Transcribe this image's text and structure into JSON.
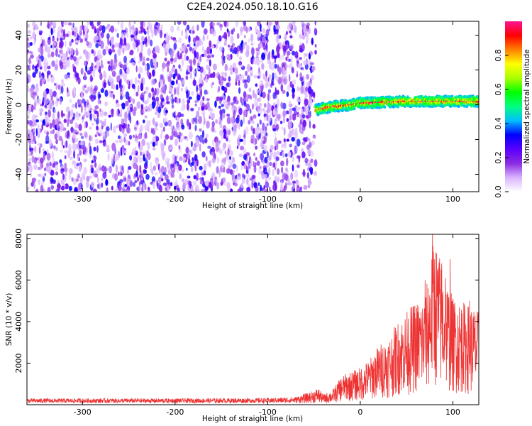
{
  "figure_title": "C2E4.2024.050.18.10.G16",
  "chart_data": [
    {
      "type": "heatmap",
      "title": "",
      "xlabel": "Height of straight line (km)",
      "ylabel": "Frequency (Hz)",
      "xlim": [
        -360,
        128
      ],
      "ylim": [
        -50,
        48
      ],
      "xticks": [
        -300,
        -200,
        -100,
        0,
        100
      ],
      "yticks": [
        -40,
        -20,
        0,
        20,
        40
      ],
      "grid": false,
      "colorbar": {
        "label": "Normalized spectral amplitude",
        "range": [
          0,
          1
        ],
        "ticks": [
          0.0,
          0.2,
          0.4,
          0.6,
          0.8
        ],
        "colormap": [
          "#ffffff",
          "#d9b3ff",
          "#8a2be2",
          "#5a00ff",
          "#0000ff",
          "#00bfff",
          "#00ff7f",
          "#00ff00",
          "#aaff00",
          "#ffff00",
          "#ff8000",
          "#ff0000",
          "#ff1493"
        ]
      },
      "regions": [
        {
          "name": "noise",
          "x_range": [
            -360,
            -48
          ],
          "y_range": [
            -50,
            48
          ],
          "amplitude_range": [
            0.0,
            0.2
          ]
        },
        {
          "name": "signal_band",
          "x_range": [
            -48,
            128
          ],
          "center_frequency": [
            [
              -48,
              -3
            ],
            [
              -30,
              -1
            ],
            [
              -10,
              0
            ],
            [
              0,
              1
            ],
            [
              50,
              2
            ],
            [
              128,
              2
            ]
          ],
          "half_width_hz": 3,
          "amplitude_range": [
            0.4,
            1.0
          ]
        }
      ]
    },
    {
      "type": "line",
      "title": "",
      "xlabel": "Height of straight line (km)",
      "ylabel": "SNR (10 * v/v)",
      "xlim": [
        -360,
        128
      ],
      "ylim": [
        0,
        8200
      ],
      "xticks": [
        -300,
        -200,
        -100,
        0,
        100
      ],
      "yticks": [
        2000,
        4000,
        6000,
        8000
      ],
      "grid": false,
      "color": "#ee3333",
      "envelope": {
        "x": [
          -360,
          -300,
          -200,
          -100,
          -70,
          -55,
          -45,
          -40,
          -30,
          -20,
          -10,
          0,
          10,
          20,
          30,
          40,
          50,
          60,
          70,
          80,
          90,
          100,
          110,
          120,
          128
        ],
        "y": [
          300,
          300,
          300,
          320,
          380,
          600,
          800,
          500,
          700,
          1400,
          1600,
          1800,
          2200,
          2900,
          3200,
          4000,
          4500,
          5000,
          5300,
          8200,
          6500,
          5200,
          5000,
          4800,
          4500
        ]
      },
      "peaks": [
        {
          "x": 78,
          "y": 8200
        },
        {
          "x": 88,
          "y": 6800
        },
        {
          "x": 97,
          "y": 7000
        },
        {
          "x": 70,
          "y": 6000
        },
        {
          "x": 92,
          "y": 6100
        },
        {
          "x": 118,
          "y": 5000
        },
        {
          "x": 110,
          "y": 4400
        },
        {
          "x": 60,
          "y": 3000
        },
        {
          "x": 55,
          "y": 3200
        }
      ]
    }
  ]
}
